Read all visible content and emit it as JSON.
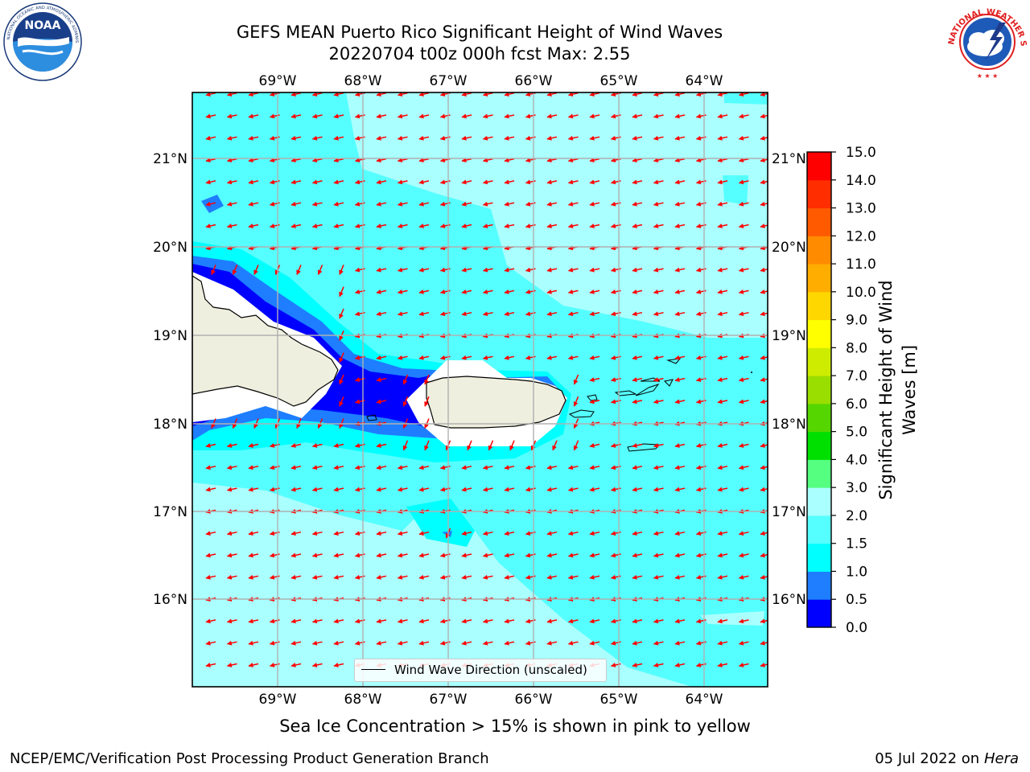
{
  "title": {
    "line1": "GEFS MEAN Puerto Rico Significant Height of Wind Waves",
    "line2": "20220704 t00z 000h fcst   Max: 2.55"
  },
  "logos": {
    "left": {
      "name": "noaa-logo",
      "text": "NOAA",
      "ring_text": "NATIONAL OCEANIC AND ATMOSPHERIC ADMINISTRATION · U.S. DEPARTMENT OF COMMERCE"
    },
    "right": {
      "name": "nws-logo",
      "ring_text": "NATIONAL WEATHER SERVICE"
    }
  },
  "map": {
    "lon_labels": [
      "69°W",
      "68°W",
      "67°W",
      "66°W",
      "65°W",
      "64°W"
    ],
    "lat_labels": [
      "21°N",
      "20°N",
      "19°N",
      "18°N",
      "17°N",
      "16°N"
    ],
    "legend": "Wind Wave Direction (unscaled)",
    "arrow_color": "#ff0000",
    "land_color": "#efefdf",
    "wave_direction": "toward west / west-southwest (easterly trades)"
  },
  "colorbar": {
    "title_line1": "Significant Height of Wind",
    "title_line2": "Waves [m]",
    "ticks": [
      "0.0",
      "0.5",
      "1.0",
      "1.5",
      "2.0",
      "3.0",
      "4.0",
      "5.0",
      "6.0",
      "7.0",
      "8.0",
      "9.0",
      "10.0",
      "11.0",
      "12.0",
      "13.0",
      "14.0",
      "15.0"
    ],
    "colors": [
      "#0000ff",
      "#1e7eff",
      "#00ffff",
      "#55ffff",
      "#aaffff",
      "#55ff80",
      "#00e000",
      "#55d600",
      "#9ade00",
      "#cdec00",
      "#ffff00",
      "#ffd700",
      "#ffae00",
      "#ff8c00",
      "#ff5a00",
      "#ff2d00",
      "#ff0000"
    ]
  },
  "ice_note": "Sea Ice Concentration > 15% is shown in pink to yellow",
  "footer": {
    "left": "NCEP/EMC/Verification Post Processing Product Generation Branch",
    "right_prefix": "05 Jul 2022 on",
    "right_machine": "Hera"
  }
}
